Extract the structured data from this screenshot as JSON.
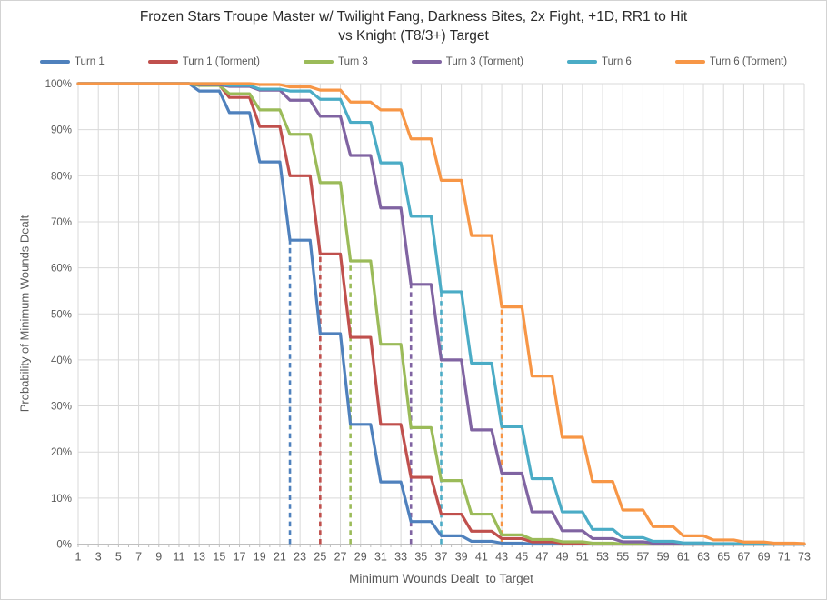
{
  "chart": {
    "title_line1": "Frozen Stars Troupe Master w/ Twilight Fang, Darkness Bites, 2x Fight, +1D, RR1 to Hit",
    "title_line2": "vs Knight (T8/3+) Target",
    "xlabel": "Minimum Wounds Dealt  to Target",
    "ylabel": "Probability of Minimum Wounds Dealt"
  },
  "chart_data": {
    "type": "line",
    "title": "Frozen Stars Troupe Master w/ Twilight Fang, Darkness Bites, 2x Fight, +1D, RR1 to Hit vs Knight (T8/3+) Target",
    "xlabel": "Minimum Wounds Dealt  to Target",
    "ylabel": "Probability of Minimum Wounds Dealt",
    "x_range": [
      1,
      73
    ],
    "ylim": [
      0,
      100
    ],
    "x_major_tick_step": 2,
    "x_minor_tick_step": 1,
    "y_tick_step": 10,
    "grid": true,
    "legend_position": "top",
    "group_size": 3,
    "note": "Staircase survival curves P(wounds >= x); values constant over groups of 3 x-units (3k+1..3k+3), dropping over 1 unit between groups. Dashed vertical lines mark each series' mean wounds, drawn up to the curve.",
    "x_tick_labels": [
      "1",
      "3",
      "5",
      "7",
      "9",
      "11",
      "13",
      "15",
      "17",
      "19",
      "21",
      "23",
      "25",
      "27",
      "29",
      "31",
      "33",
      "35",
      "37",
      "39",
      "41",
      "43",
      "45",
      "47",
      "49",
      "51",
      "53",
      "55",
      "57",
      "59",
      "61",
      "63",
      "65",
      "67",
      "69",
      "71",
      "73"
    ],
    "y_tick_labels": [
      "0%",
      "10%",
      "20%",
      "30%",
      "40%",
      "50%",
      "60%",
      "70%",
      "80%",
      "90%",
      "100%"
    ],
    "colors": {
      "gridline": "#d9d9d9",
      "axis_line": "#bfbfbf",
      "tick_text": "#595959",
      "title_text": "#2b2b2b"
    },
    "series": [
      {
        "name": "Turn 1",
        "color": "#4F81BD",
        "mean_line_x": 22,
        "group_values_pct": [
          100,
          100,
          100,
          100,
          98.4,
          93.7,
          83,
          66,
          45.7,
          26,
          13.5,
          4.9,
          1.8,
          0.6,
          0.2,
          0,
          0,
          0,
          0,
          0,
          0,
          0,
          0,
          0,
          0
        ]
      },
      {
        "name": "Turn 1 (Torment)",
        "color": "#C0504D",
        "mean_line_x": 25,
        "group_values_pct": [
          100,
          100,
          100,
          100,
          99.7,
          97,
          90.7,
          80,
          63,
          44.9,
          26,
          14.5,
          6.5,
          2.8,
          1.2,
          0.5,
          0.2,
          0,
          0,
          0,
          0,
          0,
          0,
          0,
          0
        ]
      },
      {
        "name": "Turn 3",
        "color": "#9BBB59",
        "mean_line_x": 28,
        "group_values_pct": [
          100,
          100,
          100,
          100,
          99.6,
          97.8,
          94.3,
          89,
          78.5,
          61.5,
          43.4,
          25.3,
          13.8,
          6.5,
          2,
          1,
          0.5,
          0.2,
          0,
          0,
          0,
          0,
          0,
          0,
          0
        ]
      },
      {
        "name": "Turn 3 (Torment)",
        "color": "#8064A2",
        "mean_line_x": 34,
        "group_values_pct": [
          100,
          100,
          100,
          100,
          99.8,
          99.4,
          98.6,
          96.4,
          92.9,
          84.4,
          73,
          56.4,
          40,
          24.8,
          15.4,
          7,
          2.9,
          1.2,
          0.5,
          0.2,
          0,
          0,
          0,
          0,
          0
        ]
      },
      {
        "name": "Turn 6",
        "color": "#4BACC6",
        "mean_line_x": 37,
        "group_values_pct": [
          100,
          100,
          100,
          100,
          100,
          99.6,
          98.8,
          98.4,
          96.6,
          91.6,
          82.8,
          71.2,
          54.8,
          39.3,
          25.5,
          14.2,
          7,
          3.2,
          1.4,
          0.6,
          0.25,
          0.1,
          0,
          0,
          0
        ]
      },
      {
        "name": "Turn 6 (Torment)",
        "color": "#F79646",
        "mean_line_x": 43,
        "group_values_pct": [
          100,
          100,
          100,
          100,
          100,
          100,
          99.8,
          99.3,
          98.6,
          96,
          94.3,
          88,
          79,
          67,
          51.5,
          36.5,
          23.2,
          13.6,
          7.4,
          3.8,
          1.8,
          0.9,
          0.45,
          0.2,
          0.1
        ]
      }
    ]
  }
}
